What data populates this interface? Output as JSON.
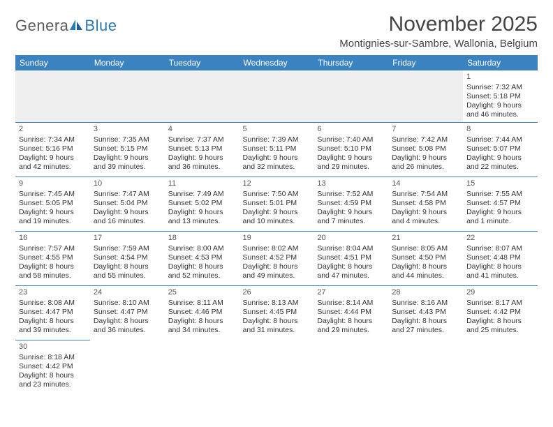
{
  "brand": {
    "part1": "Genera",
    "part2": "Blue"
  },
  "title": "November 2025",
  "location": "Montignies-sur-Sambre, Wallonia, Belgium",
  "colors": {
    "header_bg": "#3b83c0",
    "header_fg": "#ffffff",
    "rule": "#3b83c0",
    "title_fg": "#444444",
    "body_fg": "#333333",
    "logo_gray": "#5a5a5a",
    "logo_blue": "#2a7ab8",
    "empty_bg": "#efefef"
  },
  "weekdays": [
    "Sunday",
    "Monday",
    "Tuesday",
    "Wednesday",
    "Thursday",
    "Friday",
    "Saturday"
  ],
  "weeks": [
    [
      null,
      null,
      null,
      null,
      null,
      null,
      {
        "n": 1,
        "sr": "7:32 AM",
        "ss": "5:18 PM",
        "dl": "9 hours and 46 minutes."
      }
    ],
    [
      {
        "n": 2,
        "sr": "7:34 AM",
        "ss": "5:16 PM",
        "dl": "9 hours and 42 minutes."
      },
      {
        "n": 3,
        "sr": "7:35 AM",
        "ss": "5:15 PM",
        "dl": "9 hours and 39 minutes."
      },
      {
        "n": 4,
        "sr": "7:37 AM",
        "ss": "5:13 PM",
        "dl": "9 hours and 36 minutes."
      },
      {
        "n": 5,
        "sr": "7:39 AM",
        "ss": "5:11 PM",
        "dl": "9 hours and 32 minutes."
      },
      {
        "n": 6,
        "sr": "7:40 AM",
        "ss": "5:10 PM",
        "dl": "9 hours and 29 minutes."
      },
      {
        "n": 7,
        "sr": "7:42 AM",
        "ss": "5:08 PM",
        "dl": "9 hours and 26 minutes."
      },
      {
        "n": 8,
        "sr": "7:44 AM",
        "ss": "5:07 PM",
        "dl": "9 hours and 22 minutes."
      }
    ],
    [
      {
        "n": 9,
        "sr": "7:45 AM",
        "ss": "5:05 PM",
        "dl": "9 hours and 19 minutes."
      },
      {
        "n": 10,
        "sr": "7:47 AM",
        "ss": "5:04 PM",
        "dl": "9 hours and 16 minutes."
      },
      {
        "n": 11,
        "sr": "7:49 AM",
        "ss": "5:02 PM",
        "dl": "9 hours and 13 minutes."
      },
      {
        "n": 12,
        "sr": "7:50 AM",
        "ss": "5:01 PM",
        "dl": "9 hours and 10 minutes."
      },
      {
        "n": 13,
        "sr": "7:52 AM",
        "ss": "4:59 PM",
        "dl": "9 hours and 7 minutes."
      },
      {
        "n": 14,
        "sr": "7:54 AM",
        "ss": "4:58 PM",
        "dl": "9 hours and 4 minutes."
      },
      {
        "n": 15,
        "sr": "7:55 AM",
        "ss": "4:57 PM",
        "dl": "9 hours and 1 minute."
      }
    ],
    [
      {
        "n": 16,
        "sr": "7:57 AM",
        "ss": "4:55 PM",
        "dl": "8 hours and 58 minutes."
      },
      {
        "n": 17,
        "sr": "7:59 AM",
        "ss": "4:54 PM",
        "dl": "8 hours and 55 minutes."
      },
      {
        "n": 18,
        "sr": "8:00 AM",
        "ss": "4:53 PM",
        "dl": "8 hours and 52 minutes."
      },
      {
        "n": 19,
        "sr": "8:02 AM",
        "ss": "4:52 PM",
        "dl": "8 hours and 49 minutes."
      },
      {
        "n": 20,
        "sr": "8:04 AM",
        "ss": "4:51 PM",
        "dl": "8 hours and 47 minutes."
      },
      {
        "n": 21,
        "sr": "8:05 AM",
        "ss": "4:50 PM",
        "dl": "8 hours and 44 minutes."
      },
      {
        "n": 22,
        "sr": "8:07 AM",
        "ss": "4:48 PM",
        "dl": "8 hours and 41 minutes."
      }
    ],
    [
      {
        "n": 23,
        "sr": "8:08 AM",
        "ss": "4:47 PM",
        "dl": "8 hours and 39 minutes."
      },
      {
        "n": 24,
        "sr": "8:10 AM",
        "ss": "4:47 PM",
        "dl": "8 hours and 36 minutes."
      },
      {
        "n": 25,
        "sr": "8:11 AM",
        "ss": "4:46 PM",
        "dl": "8 hours and 34 minutes."
      },
      {
        "n": 26,
        "sr": "8:13 AM",
        "ss": "4:45 PM",
        "dl": "8 hours and 31 minutes."
      },
      {
        "n": 27,
        "sr": "8:14 AM",
        "ss": "4:44 PM",
        "dl": "8 hours and 29 minutes."
      },
      {
        "n": 28,
        "sr": "8:16 AM",
        "ss": "4:43 PM",
        "dl": "8 hours and 27 minutes."
      },
      {
        "n": 29,
        "sr": "8:17 AM",
        "ss": "4:42 PM",
        "dl": "8 hours and 25 minutes."
      }
    ],
    [
      {
        "n": 30,
        "sr": "8:18 AM",
        "ss": "4:42 PM",
        "dl": "8 hours and 23 minutes."
      },
      null,
      null,
      null,
      null,
      null,
      null
    ]
  ],
  "labels": {
    "sunrise": "Sunrise:",
    "sunset": "Sunset:",
    "daylight": "Daylight:"
  }
}
